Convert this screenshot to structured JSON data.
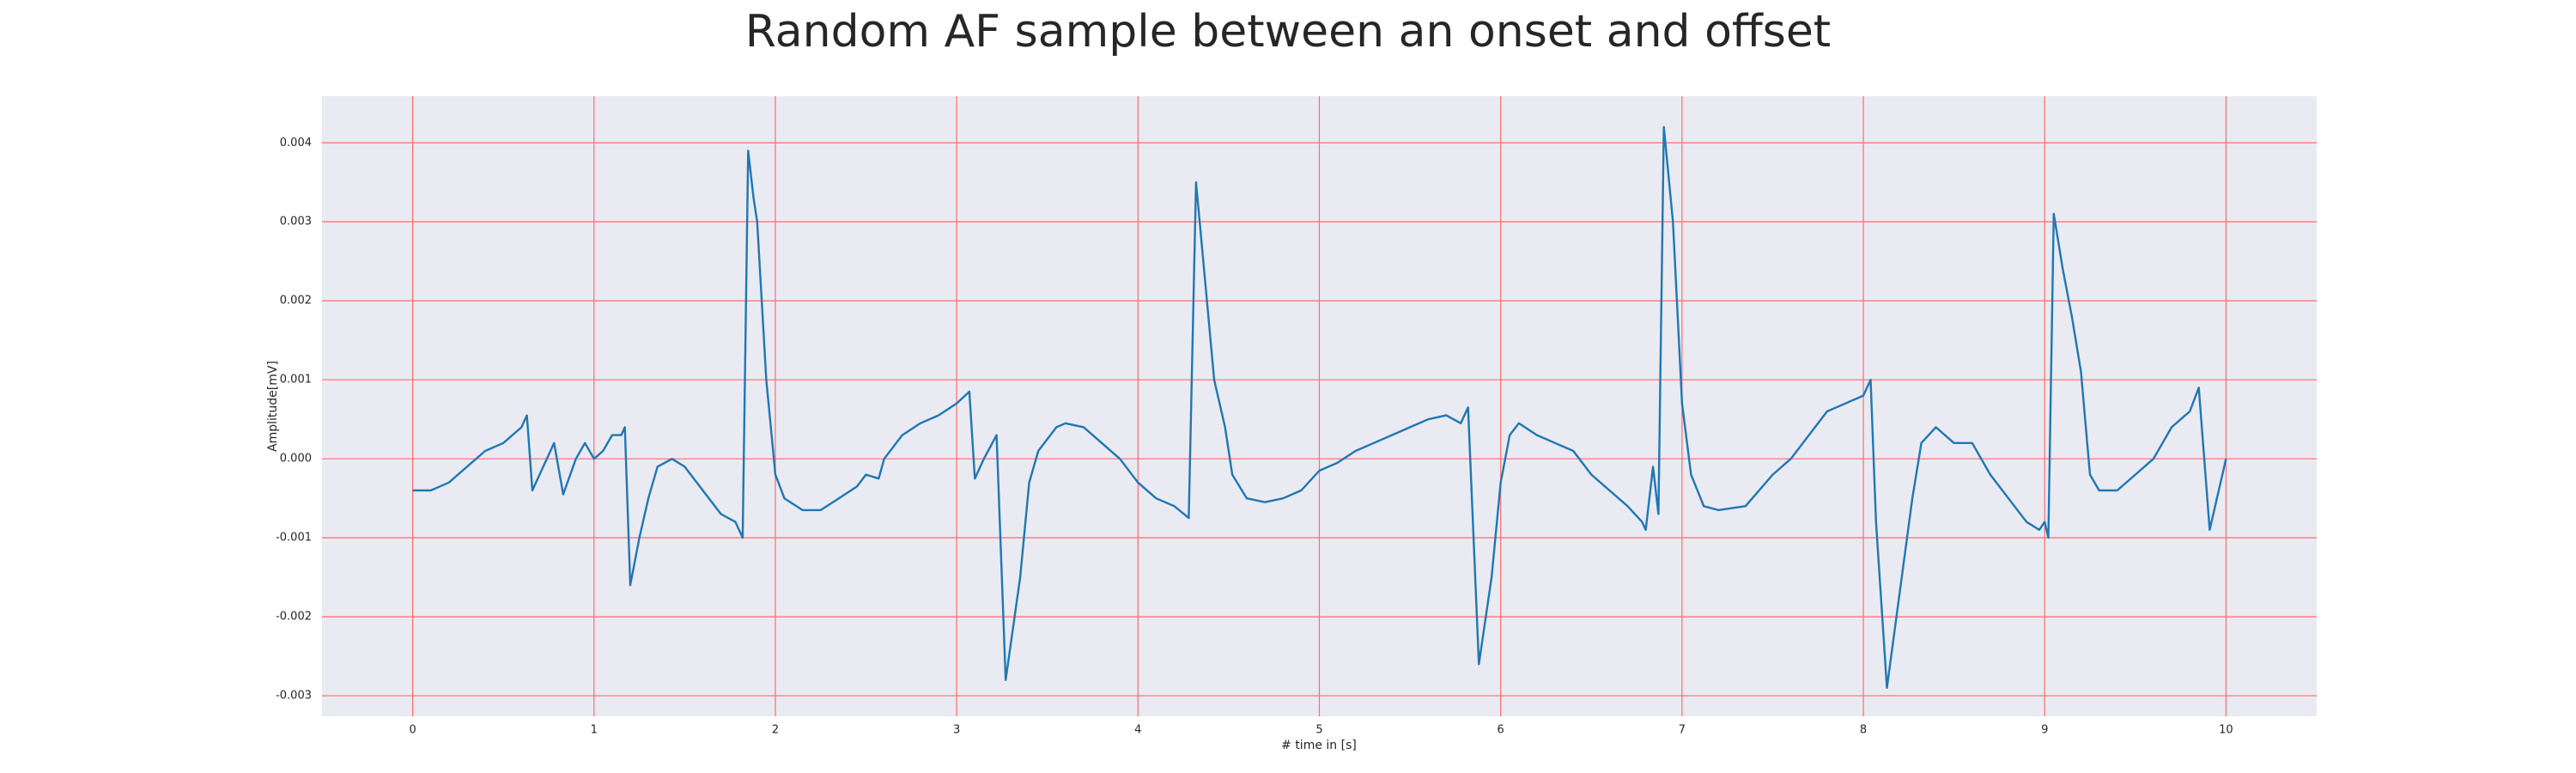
{
  "chart_data": {
    "type": "line",
    "title": "Random AF sample between an onset and offset",
    "x_label": "# time in [s]",
    "y_label": "Amplitude[mV]",
    "color": "#1f77b4",
    "grid": true,
    "grid_color": "#ff6b6b",
    "background": "#eaeaf2",
    "xlim": [
      -0.5,
      10.5
    ],
    "xticks": [
      0,
      1,
      2,
      3,
      4,
      5,
      6,
      7,
      8,
      9,
      10
    ],
    "ylim": [
      -0.00326,
      0.00459
    ],
    "yticks": [
      {
        "value": -0.003,
        "label": "-0.003"
      },
      {
        "value": -0.002,
        "label": "-0.002"
      },
      {
        "value": -0.001,
        "label": "-0.001"
      },
      {
        "value": 0,
        "label": "0.000"
      },
      {
        "value": 0.001,
        "label": "0.001"
      },
      {
        "value": 0.002,
        "label": "0.002"
      },
      {
        "value": 0.003,
        "label": "0.003"
      },
      {
        "value": 0.004,
        "label": "0.004"
      }
    ],
    "x": [
      0,
      0.1,
      0.2,
      0.3,
      0.4,
      0.5,
      0.6,
      0.63,
      0.66,
      0.7,
      0.78,
      0.83,
      0.9,
      0.95,
      1.0,
      1.05,
      1.1,
      1.15,
      1.17,
      1.2,
      1.25,
      1.3,
      1.35,
      1.43,
      1.5,
      1.6,
      1.7,
      1.78,
      1.82,
      1.85,
      1.88,
      1.9,
      1.95,
      2.0,
      2.05,
      2.15,
      2.25,
      2.35,
      2.45,
      2.5,
      2.57,
      2.6,
      2.7,
      2.8,
      2.9,
      3.0,
      3.07,
      3.1,
      3.15,
      3.22,
      3.27,
      3.35,
      3.4,
      3.45,
      3.55,
      3.6,
      3.7,
      3.8,
      3.9,
      4.0,
      4.1,
      4.2,
      4.28,
      4.32,
      4.38,
      4.42,
      4.48,
      4.52,
      4.6,
      4.7,
      4.8,
      4.9,
      5.0,
      5.1,
      5.2,
      5.3,
      5.4,
      5.5,
      5.6,
      5.7,
      5.78,
      5.82,
      5.88,
      5.95,
      6.0,
      6.05,
      6.1,
      6.2,
      6.3,
      6.4,
      6.5,
      6.6,
      6.7,
      6.78,
      6.8,
      6.84,
      6.87,
      6.9,
      6.95,
      7.0,
      7.05,
      7.12,
      7.2,
      7.35,
      7.5,
      7.6,
      7.7,
      7.8,
      7.9,
      8.0,
      8.04,
      8.07,
      8.13,
      8.2,
      8.27,
      8.32,
      8.4,
      8.5,
      8.6,
      8.7,
      8.8,
      8.9,
      8.97,
      9.0,
      9.02,
      9.05,
      9.1,
      9.15,
      9.2,
      9.25,
      9.3,
      9.4,
      9.5,
      9.6,
      9.7,
      9.8,
      9.85,
      9.91,
      10.0
    ],
    "values": [
      -0.0004,
      -0.0004,
      -0.0003,
      -0.0001,
      0.0001,
      0.0002,
      0.0004,
      0.00055,
      -0.0004,
      -0.0002,
      0.0002,
      -0.00045,
      0.0,
      0.0002,
      0.0,
      0.0001,
      0.0003,
      0.0003,
      0.0004,
      -0.0016,
      -0.001,
      -0.0005,
      -0.0001,
      0.0,
      -0.0001,
      -0.0004,
      -0.0007,
      -0.0008,
      -0.001,
      0.0039,
      0.0033,
      0.003,
      0.001,
      -0.0002,
      -0.0005,
      -0.00065,
      -0.00065,
      -0.0005,
      -0.00035,
      -0.0002,
      -0.00025,
      0.0,
      0.0003,
      0.00045,
      0.00055,
      0.0007,
      0.00085,
      -0.00025,
      0.0,
      0.0003,
      -0.0028,
      -0.0015,
      -0.0003,
      0.0001,
      0.0004,
      0.00045,
      0.0004,
      0.0002,
      0.0,
      -0.0003,
      -0.0005,
      -0.0006,
      -0.00075,
      0.0035,
      0.002,
      0.001,
      0.0004,
      -0.0002,
      -0.0005,
      -0.00055,
      -0.0005,
      -0.0004,
      -0.00015,
      -5e-05,
      0.0001,
      0.0002,
      0.0003,
      0.0004,
      0.0005,
      0.00055,
      0.00045,
      0.00065,
      -0.0026,
      -0.0015,
      -0.0003,
      0.0003,
      0.00045,
      0.0003,
      0.0002,
      0.0001,
      -0.0002,
      -0.0004,
      -0.0006,
      -0.0008,
      -0.0009,
      -0.0001,
      -0.0007,
      0.0042,
      0.003,
      0.0007,
      -0.0002,
      -0.0006,
      -0.00065,
      -0.0006,
      -0.0002,
      0.0,
      0.0003,
      0.0006,
      0.0007,
      0.0008,
      0.001,
      -0.0008,
      -0.0029,
      -0.0017,
      -0.0005,
      0.0002,
      0.0004,
      0.0002,
      0.0002,
      -0.0002,
      -0.0005,
      -0.0008,
      -0.0009,
      -0.0008,
      -0.001,
      0.0031,
      0.0024,
      0.0018,
      0.0011,
      -0.0002,
      -0.0004,
      -0.0004,
      -0.0002,
      0.0,
      0.0004,
      0.0006,
      0.0009,
      -0.0009,
      0.0
    ]
  }
}
